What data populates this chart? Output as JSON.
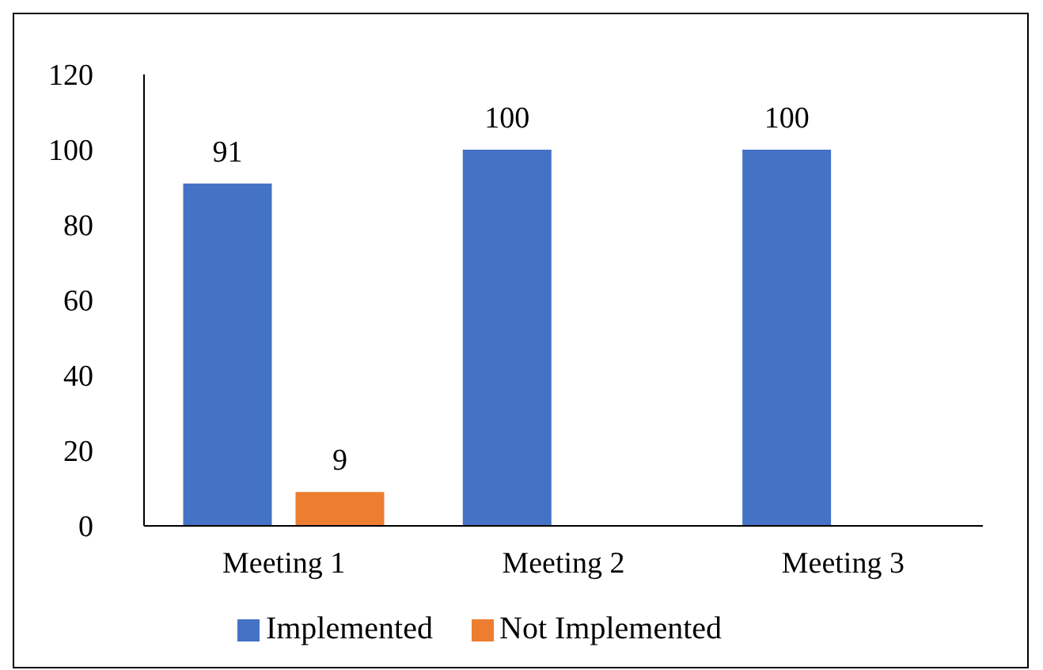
{
  "chart_data": {
    "type": "bar",
    "categories": [
      "Meeting 1",
      "Meeting 2",
      "Meeting 3"
    ],
    "series": [
      {
        "name": "Implemented",
        "color": "#4472c4",
        "values": [
          91,
          100,
          100
        ],
        "value_labels": [
          "91",
          "100",
          "100"
        ]
      },
      {
        "name": "Not Implemented",
        "color": "#ed7d31",
        "values": [
          9,
          0,
          0
        ],
        "value_labels": [
          "9",
          null,
          null
        ]
      }
    ],
    "ylim": [
      0,
      120
    ],
    "yticks": [
      0,
      20,
      40,
      60,
      80,
      100,
      120
    ],
    "grid": false,
    "legend": "bottom"
  }
}
